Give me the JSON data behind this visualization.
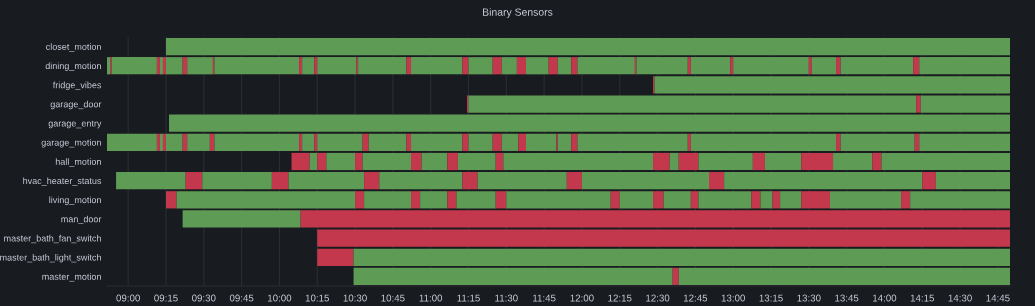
{
  "chart_data": {
    "type": "bar",
    "orientation": "horizontal",
    "title": "Binary Sensors",
    "categories": [
      "closet_motion",
      "dining_motion",
      "fridge_vibes",
      "garage_door",
      "garage_entry",
      "garage_motion",
      "hall_motion",
      "hvac_heater_status",
      "living_motion",
      "man_door",
      "master_bath_fan_switch",
      "master_bath_light_switch",
      "master_motion"
    ],
    "xlim": [
      8.86,
      14.83
    ],
    "xticks": [
      {
        "value": 9,
        "label": "09:00"
      },
      {
        "value": 9.25,
        "label": "09:15"
      },
      {
        "value": 9.5,
        "label": "09:30"
      },
      {
        "value": 9.75,
        "label": "09:45"
      },
      {
        "value": 10,
        "label": "10:00"
      },
      {
        "value": 10.25,
        "label": "10:15"
      },
      {
        "value": 10.5,
        "label": "10:30"
      },
      {
        "value": 10.75,
        "label": "10:45"
      },
      {
        "value": 11,
        "label": "11:00"
      },
      {
        "value": 11.25,
        "label": "11:15"
      },
      {
        "value": 11.5,
        "label": "11:30"
      },
      {
        "value": 11.75,
        "label": "11:45"
      },
      {
        "value": 12,
        "label": "12:00"
      },
      {
        "value": 12.25,
        "label": "12:15"
      },
      {
        "value": 12.5,
        "label": "12:30"
      },
      {
        "value": 12.75,
        "label": "12:45"
      },
      {
        "value": 13,
        "label": "13:00"
      },
      {
        "value": 13.25,
        "label": "13:15"
      },
      {
        "value": 13.5,
        "label": "13:30"
      },
      {
        "value": 13.75,
        "label": "13:45"
      },
      {
        "value": 14,
        "label": "14:00"
      },
      {
        "value": 14.25,
        "label": "14:15"
      },
      {
        "value": 14.5,
        "label": "14:30"
      },
      {
        "value": 14.75,
        "label": "14:45"
      }
    ],
    "grid": "x",
    "series": [
      {
        "base": [
          9.25,
          8.86,
          12.47,
          11.24,
          9.27,
          8.86,
          10.08,
          8.92,
          9.25,
          9.36,
          10.25,
          10.25,
          10.49
        ],
        "values": [
          5.58,
          0.02,
          0.01,
          0.01,
          5.56,
          0.33,
          0.12,
          0.46,
          0.07,
          0.78,
          4.58,
          0.24,
          2.11
        ],
        "colors": [
          "#5e9c55",
          "#5e9c55",
          "#c4384e",
          "#c4384e",
          "#5e9c55",
          "#5e9c55",
          "#c4384e",
          "#5e9c55",
          "#c4384e",
          "#5e9c55",
          "#c4384e",
          "#c4384e",
          "#5e9c55"
        ]
      },
      {
        "base": [
          null,
          8.88,
          12.48,
          11.25,
          null,
          9.19,
          10.2,
          9.38,
          9.32,
          10.14,
          null,
          10.49,
          12.6
        ],
        "values": [
          null,
          0.01,
          2.35,
          2.96,
          null,
          0.02,
          0.05,
          0.11,
          1.18,
          4.69,
          null,
          4.34,
          0.04
        ],
        "colors": [
          null,
          "#c4384e",
          "#5e9c55",
          "#5e9c55",
          null,
          "#c4384e",
          "#5e9c55",
          "#c4384e",
          "#5e9c55",
          "#c4384e",
          null,
          "#5e9c55",
          "#c4384e"
        ]
      },
      {
        "base": [
          null,
          8.89,
          null,
          14.21,
          null,
          9.21,
          10.25,
          9.49,
          10.5,
          null,
          null,
          null,
          12.64
        ],
        "values": [
          null,
          0.3,
          null,
          0.03,
          null,
          0.02,
          0.06,
          0.46,
          0.06,
          null,
          null,
          null,
          2.19
        ],
        "colors": [
          null,
          "#5e9c55",
          null,
          "#c4384e",
          null,
          "#5e9c55",
          "#c4384e",
          "#5e9c55",
          "#c4384e",
          null,
          null,
          null,
          "#5e9c55"
        ]
      },
      {
        "base": [
          null,
          9.19,
          null,
          14.24,
          null,
          9.23,
          10.31,
          9.95,
          10.56,
          null,
          null,
          null,
          null
        ],
        "values": [
          null,
          0.02,
          null,
          0.59,
          null,
          0.02,
          0.19,
          0.11,
          0.31,
          null,
          null,
          null,
          null
        ],
        "colors": [
          null,
          "#c4384e",
          null,
          "#5e9c55",
          null,
          "#c4384e",
          "#5e9c55",
          "#c4384e",
          "#5e9c55",
          null,
          null,
          null,
          null
        ]
      },
      {
        "base": [
          null,
          9.21,
          null,
          null,
          null,
          9.25,
          10.5,
          10.06,
          10.87,
          null,
          null,
          null,
          null
        ],
        "values": [
          null,
          0.02,
          null,
          null,
          null,
          0.11,
          0.05,
          0.5,
          0.06,
          null,
          null,
          null,
          null
        ],
        "colors": [
          null,
          "#5e9c55",
          null,
          null,
          null,
          "#5e9c55",
          "#c4384e",
          "#5e9c55",
          "#c4384e",
          null,
          null,
          null,
          null
        ]
      },
      {
        "base": [
          null,
          9.23,
          null,
          null,
          null,
          9.36,
          10.55,
          10.56,
          10.93,
          null,
          null,
          null,
          null
        ],
        "values": [
          null,
          0.02,
          null,
          null,
          null,
          0.03,
          0.32,
          0.1,
          0.18,
          null,
          null,
          null,
          null
        ],
        "colors": [
          null,
          "#c4384e",
          null,
          null,
          null,
          "#c4384e",
          "#5e9c55",
          "#c4384e",
          "#5e9c55",
          null,
          null,
          null,
          null
        ]
      },
      {
        "base": [
          null,
          9.25,
          null,
          null,
          null,
          9.39,
          10.87,
          10.66,
          11.11,
          null,
          null,
          null,
          null
        ],
        "values": [
          null,
          0.11,
          null,
          null,
          null,
          0.15,
          0.07,
          0.55,
          0.06,
          null,
          null,
          null,
          null
        ],
        "colors": [
          null,
          "#5e9c55",
          null,
          null,
          null,
          "#5e9c55",
          "#c4384e",
          "#5e9c55",
          "#c4384e",
          null,
          null,
          null,
          null
        ]
      },
      {
        "base": [
          null,
          9.36,
          null,
          null,
          null,
          9.54,
          10.94,
          11.21,
          11.17,
          null,
          null,
          null,
          null
        ],
        "values": [
          null,
          0.03,
          null,
          null,
          null,
          0.03,
          0.17,
          0.1,
          0.26,
          null,
          null,
          null,
          null
        ],
        "colors": [
          null,
          "#c4384e",
          null,
          null,
          null,
          "#c4384e",
          "#5e9c55",
          "#c4384e",
          "#5e9c55",
          null,
          null,
          null,
          null
        ]
      },
      {
        "base": [
          null,
          9.39,
          null,
          null,
          null,
          9.57,
          11.11,
          11.31,
          11.43,
          null,
          null,
          null,
          null
        ],
        "values": [
          null,
          0.17,
          null,
          null,
          null,
          0.56,
          0.07,
          0.59,
          0.07,
          null,
          null,
          null,
          null
        ],
        "colors": [
          null,
          "#5e9c55",
          null,
          null,
          null,
          "#5e9c55",
          "#c4384e",
          "#5e9c55",
          "#c4384e",
          null,
          null,
          null,
          null
        ]
      },
      {
        "base": [
          null,
          9.56,
          null,
          null,
          null,
          10.13,
          11.18,
          11.9,
          11.5,
          null,
          null,
          null,
          null
        ],
        "values": [
          null,
          0.01,
          null,
          null,
          null,
          0.02,
          0.25,
          0.1,
          0.69,
          null,
          null,
          null,
          null
        ],
        "colors": [
          null,
          "#c4384e",
          null,
          null,
          null,
          "#c4384e",
          "#5e9c55",
          "#c4384e",
          "#5e9c55",
          null,
          null,
          null,
          null
        ]
      },
      {
        "base": [
          null,
          9.57,
          null,
          null,
          null,
          10.15,
          11.43,
          12.0,
          12.19,
          null,
          null,
          null,
          null
        ],
        "values": [
          null,
          0.56,
          null,
          null,
          null,
          0.08,
          0.05,
          0.84,
          0.06,
          null,
          null,
          null,
          null
        ],
        "colors": [
          null,
          "#5e9c55",
          null,
          null,
          null,
          "#5e9c55",
          "#c4384e",
          "#5e9c55",
          "#c4384e",
          null,
          null,
          null,
          null
        ]
      },
      {
        "base": [
          null,
          10.13,
          null,
          null,
          null,
          10.23,
          11.48,
          12.84,
          12.25,
          null,
          null,
          null,
          null
        ],
        "values": [
          null,
          0.02,
          null,
          null,
          null,
          0.02,
          0.99,
          0.1,
          0.22,
          null,
          null,
          null,
          null
        ],
        "colors": [
          null,
          "#c4384e",
          null,
          null,
          null,
          "#c4384e",
          "#5e9c55",
          "#c4384e",
          "#5e9c55",
          null,
          null,
          null,
          null
        ]
      },
      {
        "base": [
          null,
          10.15,
          null,
          null,
          null,
          10.25,
          12.47,
          12.94,
          12.47,
          null,
          null,
          null,
          null
        ],
        "values": [
          null,
          0.08,
          null,
          null,
          null,
          0.3,
          0.11,
          1.31,
          0.07,
          null,
          null,
          null,
          null
        ],
        "colors": [
          null,
          "#5e9c55",
          null,
          null,
          null,
          "#5e9c55",
          "#c4384e",
          "#5e9c55",
          "#c4384e",
          null,
          null,
          null,
          null
        ]
      },
      {
        "base": [
          null,
          10.23,
          null,
          null,
          null,
          10.55,
          12.58,
          14.25,
          12.54,
          null,
          null,
          null,
          null
        ],
        "values": [
          null,
          0.02,
          null,
          null,
          null,
          0.04,
          0.06,
          0.09,
          0.18,
          null,
          null,
          null,
          null
        ],
        "colors": [
          null,
          "#c4384e",
          null,
          null,
          null,
          "#c4384e",
          "#5e9c55",
          "#c4384e",
          "#5e9c55",
          null,
          null,
          null,
          null
        ]
      },
      {
        "base": [
          null,
          10.25,
          null,
          null,
          null,
          10.59,
          12.64,
          14.34,
          12.72,
          null,
          null,
          null,
          null
        ],
        "values": [
          null,
          0.26,
          null,
          null,
          null,
          0.25,
          0.13,
          0.49,
          0.05,
          null,
          null,
          null,
          null
        ],
        "colors": [
          null,
          "#5e9c55",
          null,
          null,
          null,
          "#5e9c55",
          "#c4384e",
          "#5e9c55",
          "#c4384e",
          null,
          null,
          null,
          null
        ]
      },
      {
        "base": [
          null,
          10.51,
          null,
          null,
          null,
          10.84,
          12.77,
          null,
          12.77,
          null,
          null,
          null,
          null
        ],
        "values": [
          null,
          0.01,
          null,
          null,
          null,
          0.03,
          0.36,
          null,
          0.35,
          null,
          null,
          null,
          null
        ],
        "colors": [
          null,
          "#c4384e",
          null,
          null,
          null,
          "#c4384e",
          "#5e9c55",
          null,
          "#5e9c55",
          null,
          null,
          null,
          null
        ]
      },
      {
        "base": [
          null,
          10.52,
          null,
          null,
          null,
          10.87,
          13.13,
          null,
          13.12,
          null,
          null,
          null,
          null
        ],
        "values": [
          null,
          0.32,
          null,
          null,
          null,
          0.34,
          0.08,
          null,
          0.06,
          null,
          null,
          null,
          null
        ],
        "colors": [
          null,
          "#5e9c55",
          null,
          null,
          null,
          "#5e9c55",
          "#c4384e",
          null,
          "#c4384e",
          null,
          null,
          null,
          null
        ]
      },
      {
        "base": [
          null,
          10.84,
          null,
          null,
          null,
          11.21,
          13.21,
          null,
          13.18,
          null,
          null,
          null,
          null
        ],
        "values": [
          null,
          0.03,
          null,
          null,
          null,
          0.04,
          0.24,
          null,
          0.08,
          null,
          null,
          null,
          null
        ],
        "colors": [
          null,
          "#c4384e",
          null,
          null,
          null,
          "#c4384e",
          "#5e9c55",
          null,
          "#5e9c55",
          null,
          null,
          null,
          null
        ]
      },
      {
        "base": [
          null,
          10.87,
          null,
          null,
          null,
          11.25,
          13.45,
          null,
          13.26,
          null,
          null,
          null,
          null
        ],
        "values": [
          null,
          0.34,
          null,
          null,
          null,
          0.16,
          0.21,
          null,
          0.05,
          null,
          null,
          null,
          null
        ],
        "colors": [
          null,
          "#5e9c55",
          null,
          null,
          null,
          "#5e9c55",
          "#c4384e",
          null,
          "#c4384e",
          null,
          null,
          null,
          null
        ]
      },
      {
        "base": [
          null,
          11.21,
          null,
          null,
          null,
          11.41,
          13.66,
          null,
          13.31,
          null,
          null,
          null,
          null
        ],
        "values": [
          null,
          0.04,
          null,
          null,
          null,
          0.06,
          0.26,
          null,
          0.14,
          null,
          null,
          null,
          null
        ],
        "colors": [
          null,
          "#c4384e",
          null,
          null,
          null,
          "#c4384e",
          "#5e9c55",
          null,
          "#5e9c55",
          null,
          null,
          null,
          null
        ]
      },
      {
        "base": [
          null,
          11.25,
          null,
          null,
          null,
          11.47,
          13.92,
          null,
          13.45,
          null,
          null,
          null,
          null
        ],
        "values": [
          null,
          0.16,
          null,
          null,
          null,
          0.11,
          0.06,
          null,
          0.19,
          null,
          null,
          null,
          null
        ],
        "colors": [
          null,
          "#5e9c55",
          null,
          null,
          null,
          "#5e9c55",
          "#c4384e",
          null,
          "#c4384e",
          null,
          null,
          null,
          null
        ]
      },
      {
        "base": [
          null,
          11.41,
          null,
          null,
          null,
          11.58,
          13.98,
          null,
          13.64,
          null,
          null,
          null,
          null
        ],
        "values": [
          null,
          0.06,
          null,
          null,
          null,
          0.05,
          0.85,
          null,
          0.47,
          null,
          null,
          null,
          null
        ],
        "colors": [
          null,
          "#c4384e",
          null,
          null,
          null,
          "#c4384e",
          "#5e9c55",
          null,
          "#5e9c55",
          null,
          null,
          null,
          null
        ]
      },
      {
        "base": [
          null,
          11.47,
          null,
          null,
          null,
          11.63,
          null,
          null,
          14.11,
          null,
          null,
          null,
          null
        ],
        "values": [
          null,
          0.1,
          null,
          null,
          null,
          0.2,
          null,
          null,
          0.06,
          null,
          null,
          null,
          null
        ],
        "colors": [
          null,
          "#5e9c55",
          null,
          null,
          null,
          "#5e9c55",
          null,
          null,
          "#c4384e",
          null,
          null,
          null,
          null
        ]
      },
      {
        "base": [
          null,
          11.57,
          null,
          null,
          null,
          11.83,
          null,
          null,
          14.17,
          null,
          null,
          null,
          null
        ],
        "values": [
          null,
          0.06,
          null,
          null,
          null,
          0.01,
          null,
          null,
          0.66,
          null,
          null,
          null,
          null
        ],
        "colors": [
          null,
          "#c4384e",
          null,
          null,
          null,
          "#c4384e",
          null,
          null,
          "#5e9c55",
          null,
          null,
          null,
          null
        ]
      },
      {
        "base": [
          null,
          11.63,
          null,
          null,
          null,
          11.84,
          null,
          null,
          null,
          null,
          null,
          null,
          null
        ],
        "values": [
          null,
          0.15,
          null,
          null,
          null,
          0.09,
          null,
          null,
          null,
          null,
          null,
          null,
          null
        ],
        "colors": [
          null,
          "#5e9c55",
          null,
          null,
          null,
          "#5e9c55",
          null,
          null,
          null,
          null,
          null,
          null,
          null
        ]
      },
      {
        "base": [
          null,
          11.78,
          null,
          null,
          null,
          11.93,
          null,
          null,
          null,
          null,
          null,
          null,
          null
        ],
        "values": [
          null,
          0.06,
          null,
          null,
          null,
          0.04,
          null,
          null,
          null,
          null,
          null,
          null,
          null
        ],
        "colors": [
          null,
          "#c4384e",
          null,
          null,
          null,
          "#c4384e",
          null,
          null,
          null,
          null,
          null,
          null,
          null
        ]
      },
      {
        "base": [
          null,
          11.84,
          null,
          null,
          null,
          11.97,
          null,
          null,
          null,
          null,
          null,
          null,
          null
        ],
        "values": [
          null,
          0.09,
          null,
          null,
          null,
          0.73,
          null,
          null,
          null,
          null,
          null,
          null,
          null
        ],
        "colors": [
          null,
          "#5e9c55",
          null,
          null,
          null,
          "#5e9c55",
          null,
          null,
          null,
          null,
          null,
          null,
          null
        ]
      },
      {
        "base": [
          null,
          11.93,
          null,
          null,
          null,
          12.7,
          null,
          null,
          null,
          null,
          null,
          null,
          null
        ],
        "values": [
          null,
          0.04,
          null,
          null,
          null,
          0.02,
          null,
          null,
          null,
          null,
          null,
          null,
          null
        ],
        "colors": [
          null,
          "#c4384e",
          null,
          null,
          null,
          "#c4384e",
          null,
          null,
          null,
          null,
          null,
          null,
          null
        ]
      },
      {
        "base": [
          null,
          11.97,
          null,
          null,
          null,
          12.72,
          null,
          null,
          null,
          null,
          null,
          null,
          null
        ],
        "values": [
          null,
          0.38,
          null,
          null,
          null,
          0.96,
          null,
          null,
          null,
          null,
          null,
          null,
          null
        ],
        "colors": [
          null,
          "#5e9c55",
          null,
          null,
          null,
          "#5e9c55",
          null,
          null,
          null,
          null,
          null,
          null,
          null
        ]
      },
      {
        "base": [
          null,
          12.35,
          null,
          null,
          null,
          13.68,
          null,
          null,
          null,
          null,
          null,
          null,
          null
        ],
        "values": [
          null,
          0.01,
          null,
          null,
          null,
          0.03,
          null,
          null,
          null,
          null,
          null,
          null,
          null
        ],
        "colors": [
          null,
          "#c4384e",
          null,
          null,
          null,
          "#c4384e",
          null,
          null,
          null,
          null,
          null,
          null,
          null
        ]
      },
      {
        "base": [
          null,
          12.36,
          null,
          null,
          null,
          13.71,
          null,
          null,
          null,
          null,
          null,
          null,
          null
        ],
        "values": [
          null,
          0.34,
          null,
          null,
          null,
          0.49,
          null,
          null,
          null,
          null,
          null,
          null,
          null
        ],
        "colors": [
          null,
          "#5e9c55",
          null,
          null,
          null,
          "#5e9c55",
          null,
          null,
          null,
          null,
          null,
          null,
          null
        ]
      },
      {
        "base": [
          null,
          12.7,
          null,
          null,
          null,
          14.2,
          null,
          null,
          null,
          null,
          null,
          null,
          null
        ],
        "values": [
          null,
          0.02,
          null,
          null,
          null,
          0.03,
          null,
          null,
          null,
          null,
          null,
          null,
          null
        ],
        "colors": [
          null,
          "#c4384e",
          null,
          null,
          null,
          "#c4384e",
          null,
          null,
          null,
          null,
          null,
          null,
          null
        ]
      },
      {
        "base": [
          null,
          12.72,
          null,
          null,
          null,
          14.23,
          null,
          null,
          null,
          null,
          null,
          null,
          null
        ],
        "values": [
          null,
          0.26,
          null,
          null,
          null,
          0.6,
          null,
          null,
          null,
          null,
          null,
          null,
          null
        ],
        "colors": [
          null,
          "#5e9c55",
          null,
          null,
          null,
          "#5e9c55",
          null,
          null,
          null,
          null,
          null,
          null,
          null
        ]
      },
      {
        "base": [
          null,
          12.98,
          null,
          null,
          null,
          null,
          null,
          null,
          null,
          null,
          null,
          null,
          null
        ],
        "values": [
          null,
          0.02,
          null,
          null,
          null,
          null,
          null,
          null,
          null,
          null,
          null,
          null,
          null
        ],
        "colors": [
          null,
          "#c4384e",
          null,
          null,
          null,
          null,
          null,
          null,
          null,
          null,
          null,
          null,
          null
        ]
      },
      {
        "base": [
          null,
          13.0,
          null,
          null,
          null,
          null,
          null,
          null,
          null,
          null,
          null,
          null,
          null
        ],
        "values": [
          null,
          0.5,
          null,
          null,
          null,
          null,
          null,
          null,
          null,
          null,
          null,
          null,
          null
        ],
        "colors": [
          null,
          "#5e9c55",
          null,
          null,
          null,
          null,
          null,
          null,
          null,
          null,
          null,
          null,
          null
        ]
      },
      {
        "base": [
          null,
          13.5,
          null,
          null,
          null,
          null,
          null,
          null,
          null,
          null,
          null,
          null,
          null
        ],
        "values": [
          null,
          0.02,
          null,
          null,
          null,
          null,
          null,
          null,
          null,
          null,
          null,
          null,
          null
        ],
        "colors": [
          null,
          "#c4384e",
          null,
          null,
          null,
          null,
          null,
          null,
          null,
          null,
          null,
          null,
          null
        ]
      },
      {
        "base": [
          null,
          13.52,
          null,
          null,
          null,
          null,
          null,
          null,
          null,
          null,
          null,
          null,
          null
        ],
        "values": [
          null,
          0.16,
          null,
          null,
          null,
          null,
          null,
          null,
          null,
          null,
          null,
          null,
          null
        ],
        "colors": [
          null,
          "#5e9c55",
          null,
          null,
          null,
          null,
          null,
          null,
          null,
          null,
          null,
          null,
          null
        ]
      },
      {
        "base": [
          null,
          13.68,
          null,
          null,
          null,
          null,
          null,
          null,
          null,
          null,
          null,
          null,
          null
        ],
        "values": [
          null,
          0.03,
          null,
          null,
          null,
          null,
          null,
          null,
          null,
          null,
          null,
          null,
          null
        ],
        "colors": [
          null,
          "#c4384e",
          null,
          null,
          null,
          null,
          null,
          null,
          null,
          null,
          null,
          null,
          null
        ]
      },
      {
        "base": [
          null,
          13.71,
          null,
          null,
          null,
          null,
          null,
          null,
          null,
          null,
          null,
          null,
          null
        ],
        "values": [
          null,
          0.48,
          null,
          null,
          null,
          null,
          null,
          null,
          null,
          null,
          null,
          null,
          null
        ],
        "colors": [
          null,
          "#5e9c55",
          null,
          null,
          null,
          null,
          null,
          null,
          null,
          null,
          null,
          null,
          null
        ]
      },
      {
        "base": [
          null,
          14.19,
          null,
          null,
          null,
          null,
          null,
          null,
          null,
          null,
          null,
          null,
          null
        ],
        "values": [
          null,
          0.04,
          null,
          null,
          null,
          null,
          null,
          null,
          null,
          null,
          null,
          null,
          null
        ],
        "colors": [
          null,
          "#c4384e",
          null,
          null,
          null,
          null,
          null,
          null,
          null,
          null,
          null,
          null,
          null
        ]
      },
      {
        "base": [
          null,
          14.23,
          null,
          null,
          null,
          null,
          null,
          null,
          null,
          null,
          null,
          null,
          null
        ],
        "values": [
          null,
          0.6,
          null,
          null,
          null,
          null,
          null,
          null,
          null,
          null,
          null,
          null,
          null
        ],
        "colors": [
          null,
          "#5e9c55",
          null,
          null,
          null,
          null,
          null,
          null,
          null,
          null,
          null,
          null,
          null
        ]
      }
    ]
  }
}
